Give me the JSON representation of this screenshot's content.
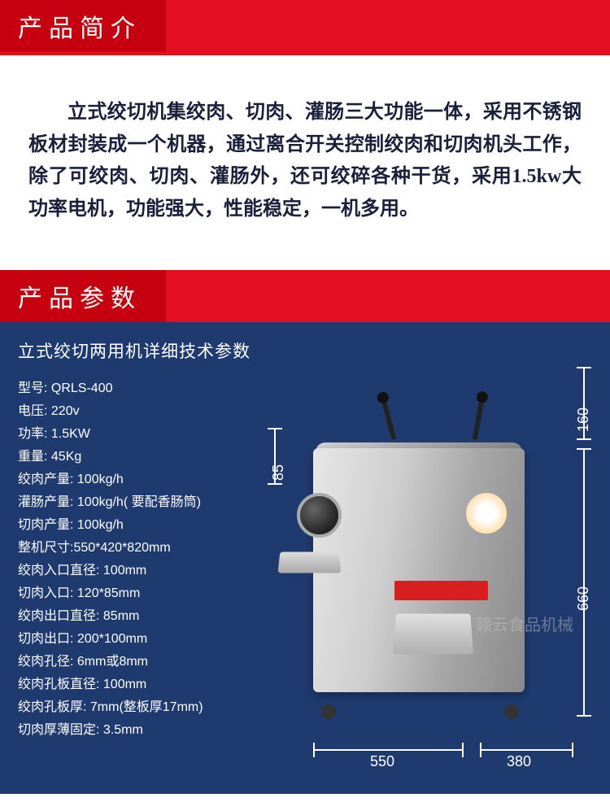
{
  "colors": {
    "header_bg": "#e30e20",
    "header_tab": "#c6000f",
    "params_bg": "#1f3a6e",
    "text_dark": "#1a1f3a",
    "text_light": "#ffffff"
  },
  "section1": {
    "title": "产品简介",
    "body": "立式绞切机集绞肉、切肉、灌肠三大功能一体，采用不锈钢板材封装成一个机器，通过离合开关控制绞肉和切肉机头工作，除了可绞肉、切肉、灌肠外，还可绞碎各种干货，采用1.5kw大功率电机，功能强大，性能稳定，一机多用。"
  },
  "section2": {
    "title": "产品参数",
    "spec_title": "立式绞切两用机详细技术参数",
    "specs": [
      "型号: QRLS-400",
      "电压: 220v",
      "功率: 1.5KW",
      "重量: 45Kg",
      "绞肉产量: 100kg/h",
      "灌肠产量: 100kg/h( 要配香肠筒)",
      "切肉产量: 100kg/h",
      "整机尺寸:550*420*820mm",
      "绞肉入口直径: 100mm",
      "切肉入口: 120*85mm",
      "绞肉出口直径: 85mm",
      "切肉出口: 200*100mm",
      "绞肉孔径: 6mm或8mm",
      "绞肉孔板直径: 100mm",
      "绞肉孔板厚: 7mm(整板厚17mm)",
      "切肉厚薄固定: 3.5mm"
    ],
    "dimensions": {
      "d85": "85",
      "d550": "550",
      "d380": "380",
      "d160": "160",
      "d660": "660"
    },
    "watermark": "赣云食品机械"
  }
}
